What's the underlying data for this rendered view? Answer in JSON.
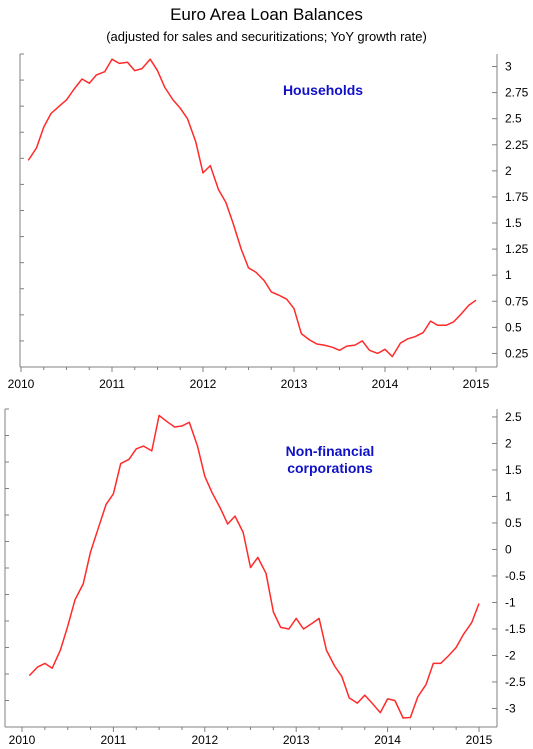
{
  "title": "Euro Area Loan Balances",
  "subtitle": "(adjusted for sales and securitizations; YoY growth rate)",
  "colors": {
    "line": "#ff2a2a",
    "annotation": "#1010c8",
    "axis": "#808080"
  },
  "chart_data": [
    {
      "type": "line",
      "title": "",
      "annotation": [
        "Households"
      ],
      "xlim": [
        2010,
        2015
      ],
      "xticks": [
        "2010",
        "2011",
        "2012",
        "2013",
        "2014",
        "2015"
      ],
      "ylim": [
        0.12,
        3.12
      ],
      "yticks": [
        "0.25",
        "0.5",
        "0.75",
        "1",
        "1.25",
        "1.5",
        "1.75",
        "2",
        "2.25",
        "2.5",
        "2.75",
        "3"
      ],
      "grid": false,
      "y_axis_side": "right",
      "series": [
        {
          "name": "",
          "x": [
            2010.08,
            2010.17,
            2010.25,
            2010.33,
            2010.42,
            2010.5,
            2010.58,
            2010.67,
            2010.75,
            2010.83,
            2010.92,
            2011.0,
            2011.08,
            2011.17,
            2011.25,
            2011.33,
            2011.42,
            2011.5,
            2011.58,
            2011.67,
            2011.75,
            2011.83,
            2011.92,
            2012.0,
            2012.08,
            2012.17,
            2012.25,
            2012.33,
            2012.42,
            2012.5,
            2012.58,
            2012.67,
            2012.75,
            2012.83,
            2012.92,
            2013.0,
            2013.08,
            2013.17,
            2013.25,
            2013.33,
            2013.42,
            2013.5,
            2013.58,
            2013.67,
            2013.75,
            2013.83,
            2013.92,
            2014.0,
            2014.08,
            2014.17,
            2014.25,
            2014.33,
            2014.42,
            2014.5,
            2014.58,
            2014.67,
            2014.75,
            2014.83,
            2014.92,
            2015.0
          ],
          "y": [
            2.1,
            2.22,
            2.42,
            2.55,
            2.62,
            2.68,
            2.78,
            2.88,
            2.84,
            2.92,
            2.95,
            3.07,
            3.03,
            3.04,
            2.96,
            2.98,
            3.07,
            2.96,
            2.8,
            2.68,
            2.6,
            2.5,
            2.28,
            1.98,
            2.05,
            1.82,
            1.7,
            1.5,
            1.25,
            1.07,
            1.03,
            0.95,
            0.84,
            0.81,
            0.77,
            0.68,
            0.44,
            0.38,
            0.34,
            0.33,
            0.31,
            0.28,
            0.32,
            0.33,
            0.37,
            0.28,
            0.25,
            0.29,
            0.22,
            0.35,
            0.39,
            0.41,
            0.45,
            0.56,
            0.52,
            0.52,
            0.55,
            0.62,
            0.71,
            0.76
          ]
        }
      ]
    },
    {
      "type": "line",
      "title": "",
      "annotation": [
        "Non-financial",
        "corporations"
      ],
      "xlim": [
        2010,
        2015
      ],
      "xticks": [
        "2010",
        "2011",
        "2012",
        "2013",
        "2014",
        "2015"
      ],
      "ylim": [
        -3.35,
        2.65
      ],
      "yticks": [
        "-3",
        "-2.5",
        "-2",
        "-1.5",
        "-1",
        "-0.5",
        "0",
        "0.5",
        "1",
        "1.5",
        "2",
        "2.5"
      ],
      "grid": false,
      "y_axis_side": "right",
      "series": [
        {
          "name": "",
          "x": [
            2010.08,
            2010.17,
            2010.25,
            2010.33,
            2010.42,
            2010.5,
            2010.58,
            2010.67,
            2010.75,
            2010.83,
            2010.92,
            2011.0,
            2011.08,
            2011.17,
            2011.25,
            2011.33,
            2011.42,
            2011.5,
            2011.58,
            2011.67,
            2011.75,
            2011.83,
            2011.92,
            2012.0,
            2012.08,
            2012.17,
            2012.25,
            2012.33,
            2012.42,
            2012.5,
            2012.58,
            2012.67,
            2012.75,
            2012.83,
            2012.92,
            2013.0,
            2013.08,
            2013.17,
            2013.25,
            2013.33,
            2013.42,
            2013.5,
            2013.58,
            2013.67,
            2013.75,
            2013.83,
            2013.92,
            2014.0,
            2014.08,
            2014.17,
            2014.25,
            2014.33,
            2014.42,
            2014.5,
            2014.58,
            2014.67,
            2014.75,
            2014.83,
            2014.92,
            2015.0
          ],
          "y": [
            -2.38,
            -2.22,
            -2.15,
            -2.24,
            -1.9,
            -1.45,
            -0.95,
            -0.65,
            -0.05,
            0.38,
            0.85,
            1.05,
            1.62,
            1.7,
            1.9,
            1.95,
            1.86,
            2.53,
            2.42,
            2.31,
            2.33,
            2.4,
            1.95,
            1.38,
            1.07,
            0.78,
            0.48,
            0.63,
            0.32,
            -0.34,
            -0.15,
            -0.45,
            -1.18,
            -1.47,
            -1.5,
            -1.3,
            -1.5,
            -1.4,
            -1.3,
            -1.9,
            -2.2,
            -2.4,
            -2.8,
            -2.9,
            -2.75,
            -2.9,
            -3.08,
            -2.82,
            -2.85,
            -3.18,
            -3.17,
            -2.78,
            -2.55,
            -2.15,
            -2.15,
            -2.0,
            -1.85,
            -1.6,
            -1.38,
            -1.02
          ]
        }
      ]
    }
  ]
}
